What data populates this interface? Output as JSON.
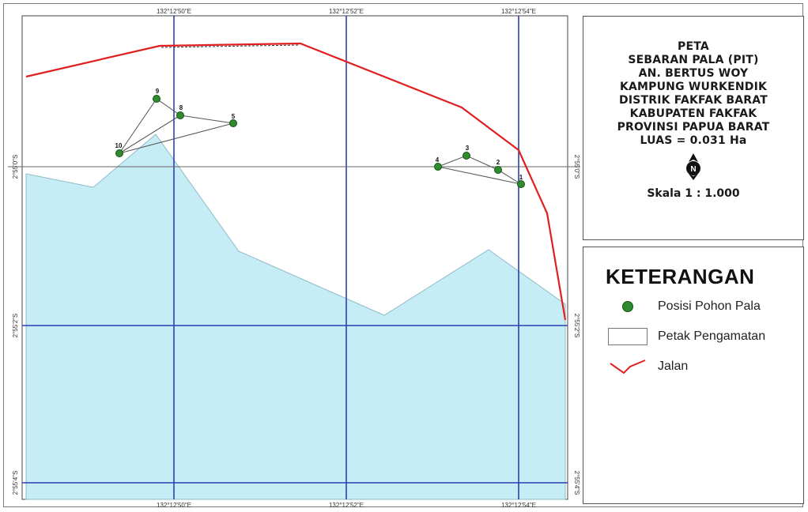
{
  "title": {
    "lines": [
      "PETA",
      "SEBARAN PALA (PIT)",
      "AN. BERTUS WOY",
      "KAMPUNG WURKENDIK",
      "DISTRIK FAKFAK BARAT",
      "KABUPATEN FAKFAK",
      "PROVINSI PAPUA BARAT",
      "LUAS = 0.031 Ha"
    ],
    "scale": "Skala 1 : 1.000"
  },
  "north_arrow": {
    "icon": "north-arrow-icon",
    "letter": "N"
  },
  "legend": {
    "heading": "KETERANGAN",
    "items": [
      {
        "icon": "green-dot-icon",
        "label": "Posisi Pohon Pala",
        "color": "#2e8b2e"
      },
      {
        "icon": "rectangle-outline-icon",
        "label": "Petak Pengamatan"
      },
      {
        "icon": "red-zigzag-line-icon",
        "label": "Jalan",
        "color": "#e02020"
      }
    ]
  },
  "map": {
    "grid_labels_top": [
      "132°12'50\"E",
      "132°12'52\"E",
      "132°12'54\"E"
    ],
    "grid_labels_bottom": [
      "132°12'50\"E",
      "132°12'52\"E",
      "132°12'54\"E"
    ],
    "grid_labels_left": [
      "2°55'0\"S",
      "2°55'2\"S",
      "2°55'4\"S"
    ],
    "grid_labels_right": [
      "2°55'0\"S",
      "2°55'2\"S",
      "2°55'4\"S"
    ],
    "tree_labels": [
      "9",
      "8",
      "5",
      "10",
      "3",
      "4",
      "2",
      "1"
    ],
    "colors": {
      "land": "#c6ecf5",
      "grid": "#2b3fb4",
      "road": "#e02020",
      "tree": "#2e8b2e"
    }
  }
}
